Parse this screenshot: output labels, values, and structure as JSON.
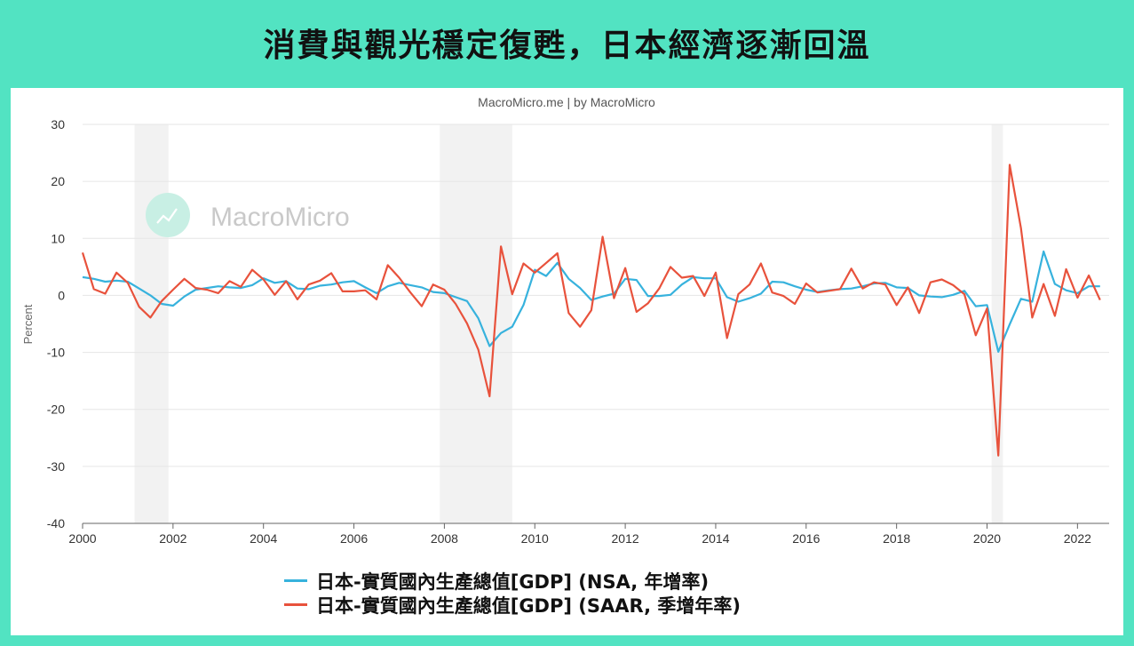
{
  "headline": "消費與觀光穩定復甦，日本經濟逐漸回溫",
  "chart_data": {
    "type": "line",
    "credit": "MacroMicro.me | by MacroMicro",
    "watermark": "MacroMicro",
    "ylabel": "Percent",
    "ylim": [
      -40,
      30
    ],
    "yticks": [
      30,
      20,
      10,
      0,
      -10,
      -20,
      -30,
      -40
    ],
    "xlim": [
      2000,
      2022.7
    ],
    "xticks": [
      2000,
      2002,
      2004,
      2006,
      2008,
      2010,
      2012,
      2014,
      2016,
      2018,
      2020,
      2022
    ],
    "grid": "horizontal",
    "legend": "bottom",
    "recessions": [
      [
        2001.15,
        2001.9
      ],
      [
        2007.9,
        2009.5
      ],
      [
        2020.1,
        2020.35
      ]
    ],
    "series": [
      {
        "name": "日本-實質國內生產總值[GDP] (NSA, 年增率)",
        "color": "#37b2dd",
        "x": [
          2000.0,
          2000.25,
          2000.5,
          2000.75,
          2001.0,
          2001.25,
          2001.5,
          2001.75,
          2002.0,
          2002.25,
          2002.5,
          2002.75,
          2003.0,
          2003.25,
          2003.5,
          2003.75,
          2004.0,
          2004.25,
          2004.5,
          2004.75,
          2005.0,
          2005.25,
          2005.5,
          2005.75,
          2006.0,
          2006.25,
          2006.5,
          2006.75,
          2007.0,
          2007.25,
          2007.5,
          2007.75,
          2008.0,
          2008.25,
          2008.5,
          2008.75,
          2009.0,
          2009.25,
          2009.5,
          2009.75,
          2010.0,
          2010.25,
          2010.5,
          2010.75,
          2011.0,
          2011.25,
          2011.5,
          2011.75,
          2012.0,
          2012.25,
          2012.5,
          2012.75,
          2013.0,
          2013.25,
          2013.5,
          2013.75,
          2014.0,
          2014.25,
          2014.5,
          2014.75,
          2015.0,
          2015.25,
          2015.5,
          2015.75,
          2016.0,
          2016.25,
          2016.5,
          2016.75,
          2017.0,
          2017.25,
          2017.5,
          2017.75,
          2018.0,
          2018.25,
          2018.5,
          2018.75,
          2019.0,
          2019.25,
          2019.5,
          2019.75,
          2020.0,
          2020.25,
          2020.5,
          2020.75,
          2021.0,
          2021.25,
          2021.5,
          2021.75,
          2022.0,
          2022.25,
          2022.5
        ],
        "values": [
          3.2,
          2.9,
          2.4,
          2.6,
          2.4,
          1.2,
          0.0,
          -1.5,
          -1.8,
          -0.2,
          1.0,
          1.3,
          1.6,
          1.4,
          1.3,
          1.8,
          3.0,
          2.2,
          2.5,
          1.2,
          1.1,
          1.7,
          1.9,
          2.3,
          2.5,
          1.4,
          0.4,
          1.6,
          2.2,
          1.8,
          1.4,
          0.6,
          0.4,
          -0.3,
          -1.0,
          -4.0,
          -8.9,
          -6.6,
          -5.5,
          -1.7,
          4.5,
          3.4,
          5.7,
          2.9,
          1.3,
          -0.8,
          -0.2,
          0.3,
          2.9,
          2.7,
          -0.1,
          -0.1,
          0.1,
          1.9,
          3.2,
          3.0,
          3.0,
          -0.3,
          -1.1,
          -0.5,
          0.3,
          2.4,
          2.3,
          1.6,
          1.0,
          0.6,
          0.9,
          1.1,
          1.2,
          1.6,
          2.1,
          2.2,
          1.4,
          1.3,
          0.0,
          -0.2,
          -0.3,
          0.1,
          0.8,
          -1.9,
          -1.7,
          -9.9,
          -5.1,
          -0.6,
          -1.1,
          7.7,
          2.0,
          0.9,
          0.4,
          1.6,
          1.6
        ]
      },
      {
        "name": "日本-實質國內生產總值[GDP] (SAAR, 季增年率)",
        "color": "#e8523c",
        "x": [
          2000.0,
          2000.25,
          2000.5,
          2000.75,
          2001.0,
          2001.25,
          2001.5,
          2001.75,
          2002.0,
          2002.25,
          2002.5,
          2002.75,
          2003.0,
          2003.25,
          2003.5,
          2003.75,
          2004.0,
          2004.25,
          2004.5,
          2004.75,
          2005.0,
          2005.25,
          2005.5,
          2005.75,
          2006.0,
          2006.25,
          2006.5,
          2006.75,
          2007.0,
          2007.25,
          2007.5,
          2007.75,
          2008.0,
          2008.25,
          2008.5,
          2008.75,
          2009.0,
          2009.25,
          2009.5,
          2009.75,
          2010.0,
          2010.25,
          2010.5,
          2010.75,
          2011.0,
          2011.25,
          2011.5,
          2011.75,
          2012.0,
          2012.25,
          2012.5,
          2012.75,
          2013.0,
          2013.25,
          2013.5,
          2013.75,
          2014.0,
          2014.25,
          2014.5,
          2014.75,
          2015.0,
          2015.25,
          2015.5,
          2015.75,
          2016.0,
          2016.25,
          2016.5,
          2016.75,
          2017.0,
          2017.25,
          2017.5,
          2017.75,
          2018.0,
          2018.25,
          2018.5,
          2018.75,
          2019.0,
          2019.25,
          2019.5,
          2019.75,
          2020.0,
          2020.25,
          2020.5,
          2020.75,
          2021.0,
          2021.25,
          2021.5,
          2021.75,
          2022.0,
          2022.25,
          2022.5
        ],
        "values": [
          7.5,
          1.1,
          0.3,
          4.0,
          2.2,
          -2.0,
          -3.9,
          -1.0,
          1.0,
          2.9,
          1.3,
          1.0,
          0.4,
          2.5,
          1.5,
          4.5,
          2.8,
          0.1,
          2.5,
          -0.7,
          1.9,
          2.6,
          3.9,
          0.7,
          0.7,
          0.9,
          -0.7,
          5.3,
          3.1,
          0.5,
          -1.9,
          1.9,
          1.0,
          -1.5,
          -4.9,
          -9.5,
          -17.7,
          8.6,
          0.2,
          5.6,
          4.0,
          5.7,
          7.4,
          -3.1,
          -5.5,
          -2.6,
          10.3,
          -0.5,
          4.8,
          -2.9,
          -1.4,
          1.2,
          5.0,
          3.1,
          3.4,
          -0.1,
          4.0,
          -7.5,
          0.2,
          1.9,
          5.6,
          0.5,
          -0.1,
          -1.5,
          2.1,
          0.5,
          0.8,
          1.1,
          4.7,
          1.2,
          2.3,
          1.9,
          -1.7,
          1.4,
          -3.1,
          2.3,
          2.8,
          1.8,
          0.2,
          -7.0,
          -2.3,
          -28.1,
          22.9,
          11.8,
          -3.9,
          2.0,
          -3.6,
          4.6,
          -0.4,
          3.5,
          -0.8
        ]
      }
    ]
  }
}
